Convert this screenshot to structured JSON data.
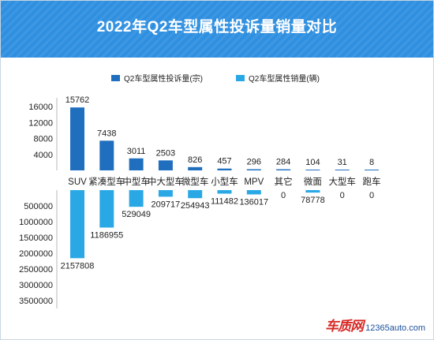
{
  "title": "2022年Q2车型属性投诉量销量对比",
  "watermark": {
    "logo_text": "车质网",
    "site_text": "12365auto.com"
  },
  "colors": {
    "header_bg": "#2f8fe0",
    "complaints": "#1f6fbe",
    "sales": "#2aa8e6",
    "watermark_red": "#d62a26"
  },
  "chart_data": {
    "type": "bar",
    "orientation": "vertical-butterfly",
    "categories": [
      "SUV",
      "紧凑型车",
      "中型车",
      "中大型车",
      "微型车",
      "小型车",
      "MPV",
      "其它",
      "微面",
      "大型车",
      "跑车"
    ],
    "series": [
      {
        "name": "Q2车型属性投诉量(宗)",
        "direction": "up",
        "color": "#1f6fbe",
        "values": [
          15762,
          7438,
          3011,
          2503,
          826,
          457,
          296,
          284,
          104,
          31,
          8
        ],
        "labels": [
          "15762",
          "7438",
          "3011",
          "2503",
          "826",
          "457",
          "296",
          "284",
          "104",
          "31",
          "8"
        ]
      },
      {
        "name": "Q2车型属性销量(辆)",
        "direction": "down",
        "color": "#2aa8e6",
        "values": [
          2157808,
          1186955,
          529049,
          209717,
          254943,
          111482,
          136017,
          0,
          78778,
          0,
          0
        ],
        "labels": [
          "2157808",
          "1186955",
          "529049",
          "209717",
          "254943",
          "111482",
          "136017",
          "0",
          "78778",
          "0",
          "0"
        ]
      }
    ],
    "upper_axis": {
      "ticks": [
        "4000",
        "8000",
        "12000",
        "16000"
      ],
      "tick_values": [
        4000,
        8000,
        12000,
        16000
      ],
      "max": 18000
    },
    "lower_axis": {
      "ticks": [
        "500000",
        "1000000",
        "1500000",
        "2000000",
        "2500000",
        "3000000",
        "3500000"
      ],
      "tick_values": [
        500000,
        1000000,
        1500000,
        2000000,
        2500000,
        3000000,
        3500000
      ],
      "max": 3700000
    },
    "grid": false,
    "legend_position": "top-center"
  }
}
